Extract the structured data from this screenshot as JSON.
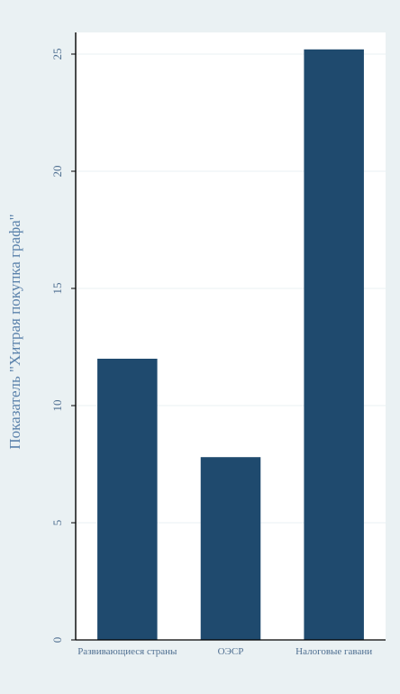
{
  "colors": {
    "outer_bg": "#eaf1f3",
    "plot_bg": "#ffffff",
    "bar": "#1f4a6e",
    "grid": "#eaf1f3",
    "axis": "#000000",
    "text": "#4f6f91"
  },
  "chart_data": {
    "type": "bar",
    "title": "",
    "xlabel": "",
    "ylabel": "Показатель \"Хитрая покупка графа\"",
    "categories": [
      "Развивающиеся страны",
      "ОЭСР",
      "Налоговые гавани"
    ],
    "values": [
      12.0,
      7.8,
      25.2
    ],
    "ylim": [
      0,
      25
    ],
    "yticks": [
      0,
      5,
      10,
      15,
      20,
      25
    ],
    "ytick_labels": [
      "0",
      "5",
      "10",
      "15",
      "20",
      "25"
    ],
    "grid": true,
    "legend": "none"
  }
}
